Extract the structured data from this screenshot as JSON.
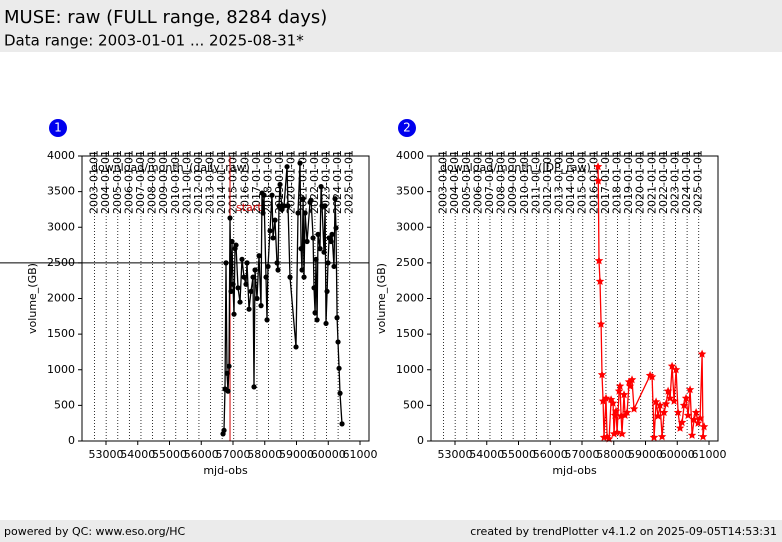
{
  "header": {
    "title": "MUSE: raw (FULL range, 8284 days)",
    "subtitle": "Data range: 2003-01-01 ... 2025-08-31*"
  },
  "footer": {
    "left": "powered by QC: www.eso.org/HC",
    "right": "created by trendPlotter v4.1.2 on 2025-09-05T14:53:31"
  },
  "chart_data": [
    {
      "type": "line",
      "badge": "1",
      "title": "download/month_(daily_raw)",
      "xlabel": "mjd-obs",
      "ylabel": "volume_(GB)",
      "xlim": [
        52244,
        61283
      ],
      "ylim": [
        0,
        4000
      ],
      "xticks": [
        53000,
        54000,
        55000,
        56000,
        57000,
        58000,
        59000,
        60000,
        61000
      ],
      "yticks": [
        0,
        500,
        1000,
        1500,
        2000,
        2500,
        3000,
        3500,
        4000
      ],
      "x2ticks": [
        {
          "value": 52640,
          "label": "2003-01-01"
        },
        {
          "value": 53005,
          "label": "2004-01-01"
        },
        {
          "value": 53371,
          "label": "2005-01-01"
        },
        {
          "value": 53736,
          "label": "2006-01-01"
        },
        {
          "value": 54101,
          "label": "2007-01-01"
        },
        {
          "value": 54466,
          "label": "2008-01-01"
        },
        {
          "value": 54832,
          "label": "2009-01-01"
        },
        {
          "value": 55197,
          "label": "2010-01-01"
        },
        {
          "value": 55562,
          "label": "2011-01-01"
        },
        {
          "value": 55927,
          "label": "2012-01-01"
        },
        {
          "value": 56293,
          "label": "2013-01-01"
        },
        {
          "value": 56658,
          "label": "2014-01-01"
        },
        {
          "value": 57023,
          "label": "2015-01-01"
        },
        {
          "value": 57388,
          "label": "2016-01-01"
        },
        {
          "value": 57754,
          "label": "2017-01-01"
        },
        {
          "value": 58119,
          "label": "2018-01-01"
        },
        {
          "value": 58484,
          "label": "2019-01-01"
        },
        {
          "value": 58849,
          "label": "2020-01-01"
        },
        {
          "value": 59215,
          "label": "2021-01-01"
        },
        {
          "value": 59580,
          "label": "2022-01-01"
        },
        {
          "value": 59945,
          "label": "2023-01-01"
        },
        {
          "value": 60310,
          "label": "2024-01-01"
        },
        {
          "value": 60676,
          "label": "2025-01-01"
        }
      ],
      "hline": 2500,
      "vline": {
        "value": 56906,
        "label": "start",
        "color": "#cc0000"
      },
      "x": [
        56686,
        56717,
        56749,
        56780,
        56812,
        56843,
        56875,
        56906,
        56938,
        56969,
        57001,
        57032,
        57064,
        57095,
        57158,
        57221,
        57284,
        57347,
        57410,
        57442,
        57505,
        57568,
        57631,
        57662,
        57694,
        57757,
        57820,
        57883,
        57914,
        57946,
        57977,
        58040,
        58072,
        58103,
        58166,
        58229,
        58261,
        58324,
        58387,
        58418,
        58450,
        58481,
        58544,
        58607,
        58702,
        58733,
        58796,
        58985,
        59048,
        59111,
        59143,
        59174,
        59206,
        59237,
        59269,
        59332,
        59426,
        59458,
        59521,
        59552,
        59584,
        59615,
        59647,
        59678,
        59741,
        59773,
        59804,
        59867,
        59899,
        59930,
        59962,
        59993,
        60025,
        60088,
        60119,
        60182,
        60214,
        60245,
        60277,
        60308,
        60340,
        60371,
        60434
      ],
      "series": [
        {
          "color": "#000000",
          "marker": "circle",
          "values": [
            100,
            150,
            730,
            2500,
            950,
            700,
            1050,
            3130,
            2100,
            2800,
            2200,
            1780,
            2700,
            2750,
            2150,
            1950,
            2550,
            2300,
            2200,
            2500,
            1850,
            2100,
            2300,
            760,
            2400,
            2000,
            2600,
            1900,
            3480,
            3200,
            3450,
            2300,
            1700,
            2450,
            2950,
            3450,
            2850,
            3100,
            2500,
            2400,
            3300,
            3600,
            3250,
            3300,
            3850,
            3300,
            2300,
            1320,
            3200,
            3900,
            2700,
            2400,
            3400,
            2300,
            3200,
            2800,
            3350,
            3380,
            2850,
            2150,
            1800,
            2550,
            1700,
            2900,
            2700,
            3570,
            3300,
            2650,
            3300,
            1650,
            2100,
            2500,
            2850,
            2800,
            2900,
            2450,
            3400,
            2990,
            1730,
            1390,
            1020,
            670,
            240
          ]
        }
      ]
    },
    {
      "type": "line",
      "badge": "2",
      "title": "download/month_(IDP_raw)",
      "xlabel": "mjd-obs",
      "ylabel": "volume_(GB)",
      "xlim": [
        52244,
        61283
      ],
      "ylim": [
        0,
        4000
      ],
      "xticks": [
        53000,
        54000,
        55000,
        56000,
        57000,
        58000,
        59000,
        60000,
        61000
      ],
      "yticks": [
        0,
        500,
        1000,
        1500,
        2000,
        2500,
        3000,
        3500,
        4000
      ],
      "x2ticks": [
        {
          "value": 52640,
          "label": "2003-01-01"
        },
        {
          "value": 53005,
          "label": "2004-01-01"
        },
        {
          "value": 53371,
          "label": "2005-01-01"
        },
        {
          "value": 53736,
          "label": "2006-01-01"
        },
        {
          "value": 54101,
          "label": "2007-01-01"
        },
        {
          "value": 54466,
          "label": "2008-01-01"
        },
        {
          "value": 54832,
          "label": "2009-01-01"
        },
        {
          "value": 55197,
          "label": "2010-01-01"
        },
        {
          "value": 55562,
          "label": "2011-01-01"
        },
        {
          "value": 55927,
          "label": "2012-01-01"
        },
        {
          "value": 56293,
          "label": "2013-01-01"
        },
        {
          "value": 56658,
          "label": "2014-01-01"
        },
        {
          "value": 57023,
          "label": "2015-01-01"
        },
        {
          "value": 57388,
          "label": "2016-01-01"
        },
        {
          "value": 57754,
          "label": "2017-01-01"
        },
        {
          "value": 58119,
          "label": "2018-01-01"
        },
        {
          "value": 58484,
          "label": "2019-01-01"
        },
        {
          "value": 58849,
          "label": "2020-01-01"
        },
        {
          "value": 59215,
          "label": "2021-01-01"
        },
        {
          "value": 59580,
          "label": "2022-01-01"
        },
        {
          "value": 59945,
          "label": "2023-01-01"
        },
        {
          "value": 60310,
          "label": "2024-01-01"
        },
        {
          "value": 60676,
          "label": "2025-01-01"
        }
      ],
      "x": [
        57505,
        57512,
        57536,
        57568,
        57600,
        57631,
        57663,
        57694,
        57757,
        57789,
        57852,
        57915,
        57978,
        58009,
        58041,
        58072,
        58104,
        58167,
        58198,
        58230,
        58261,
        58324,
        58356,
        58419,
        58482,
        58513,
        58576,
        58639,
        59143,
        59206,
        59269,
        59332,
        59395,
        59458,
        59521,
        59584,
        59647,
        59710,
        59773,
        59836,
        59899,
        59962,
        60025,
        60088,
        60151,
        60214,
        60277,
        60340,
        60403,
        60466,
        60529,
        60592,
        60655,
        60718,
        60781,
        60812,
        60844
      ],
      "series": [
        {
          "color": "#ff0000",
          "marker": "star",
          "values": [
            3850,
            3650,
            2530,
            2240,
            1640,
            930,
            560,
            50,
            600,
            60,
            30,
            580,
            530,
            100,
            360,
            420,
            120,
            700,
            770,
            350,
            100,
            650,
            360,
            400,
            830,
            770,
            860,
            450,
            920,
            900,
            50,
            550,
            350,
            500,
            60,
            400,
            520,
            700,
            600,
            1050,
            560,
            1000,
            400,
            180,
            260,
            500,
            600,
            360,
            720,
            80,
            300,
            400,
            250,
            320,
            1220,
            60,
            200
          ]
        }
      ]
    }
  ]
}
